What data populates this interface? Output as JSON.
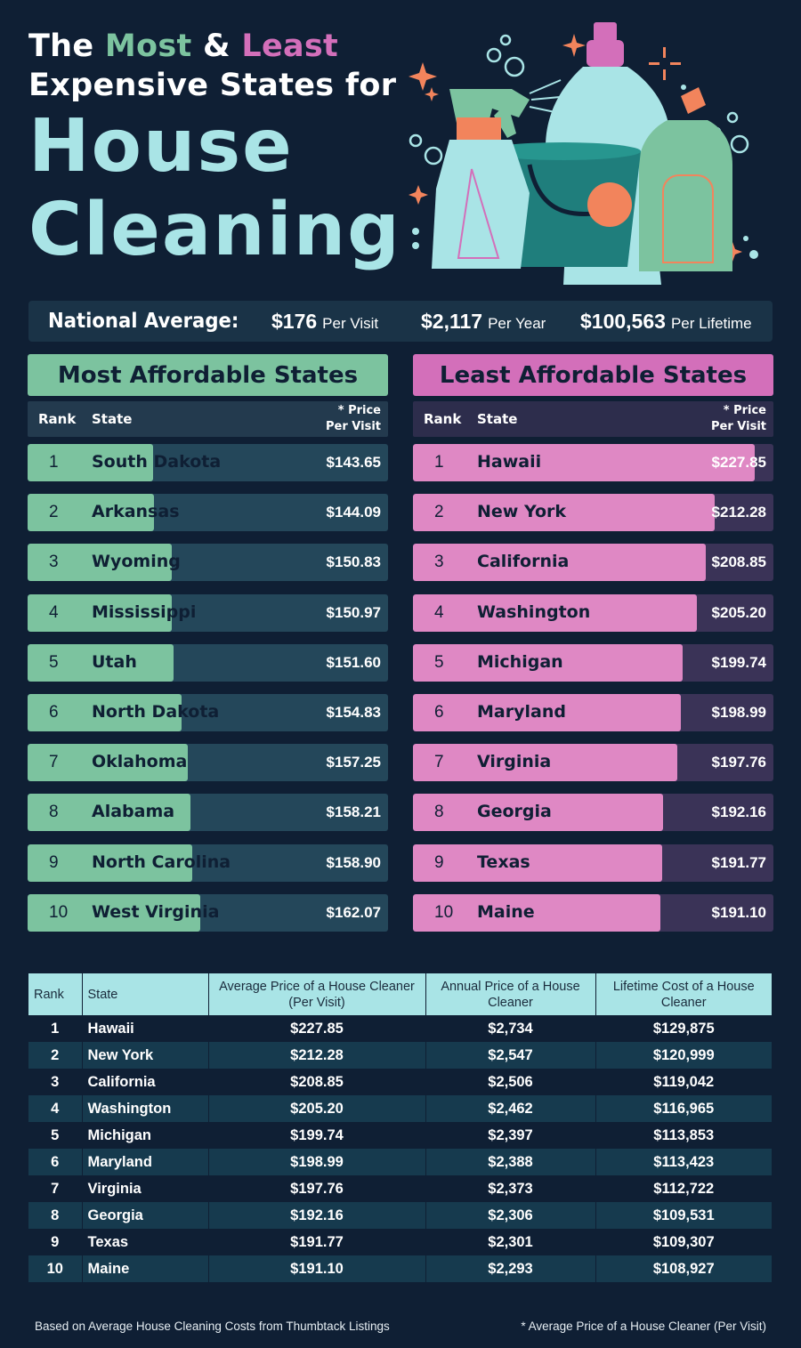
{
  "title": {
    "line1_a": "The ",
    "most": "Most",
    "amp": " & ",
    "least": "Least",
    "line2": "Expensive States for",
    "big1": "House",
    "big2": "Cleaning"
  },
  "national": {
    "label": "National Average:",
    "per_visit_value": "$176",
    "per_visit_unit": "Per Visit",
    "per_year_value": "$2,117",
    "per_year_unit": "Per Year",
    "per_lifetime_value": "$100,563",
    "per_lifetime_unit": "Per Lifetime"
  },
  "colors": {
    "background": "#0f1f34",
    "green": "#7cc39f",
    "pink": "#d36fba",
    "teal": "#a9e4e6"
  },
  "chart_data": [
    {
      "type": "bar",
      "title": "Most Affordable States",
      "col_rank": "Rank",
      "col_state": "State",
      "col_price_1": "* Price",
      "col_price_2": "Per Visit",
      "rows": [
        {
          "rank": "1",
          "state": "South Dakota",
          "price": "$143.65",
          "value": 143.65
        },
        {
          "rank": "2",
          "state": "Arkansas",
          "price": "$144.09",
          "value": 144.09
        },
        {
          "rank": "3",
          "state": "Wyoming",
          "price": "$150.83",
          "value": 150.83
        },
        {
          "rank": "4",
          "state": "Mississippi",
          "price": "$150.97",
          "value": 150.97
        },
        {
          "rank": "5",
          "state": "Utah",
          "price": "$151.60",
          "value": 151.6
        },
        {
          "rank": "6",
          "state": "North Dakota",
          "price": "$154.83",
          "value": 154.83
        },
        {
          "rank": "7",
          "state": "Oklahoma",
          "price": "$157.25",
          "value": 157.25
        },
        {
          "rank": "8",
          "state": "Alabama",
          "price": "$158.21",
          "value": 158.21
        },
        {
          "rank": "9",
          "state": "North Carolina",
          "price": "$158.90",
          "value": 158.9
        },
        {
          "rank": "10",
          "state": "West Virginia",
          "price": "$162.07",
          "value": 162.07
        }
      ],
      "scale": {
        "min": 95,
        "max": 235
      }
    },
    {
      "type": "bar",
      "title": "Least Affordable States",
      "col_rank": "Rank",
      "col_state": "State",
      "col_price_1": "* Price",
      "col_price_2": "Per Visit",
      "rows": [
        {
          "rank": "1",
          "state": "Hawaii",
          "price": "$227.85",
          "value": 227.85
        },
        {
          "rank": "2",
          "state": "New York",
          "price": "$212.28",
          "value": 212.28
        },
        {
          "rank": "3",
          "state": "California",
          "price": "$208.85",
          "value": 208.85
        },
        {
          "rank": "4",
          "state": "Washington",
          "price": "$205.20",
          "value": 205.2
        },
        {
          "rank": "5",
          "state": "Michigan",
          "price": "$199.74",
          "value": 199.74
        },
        {
          "rank": "6",
          "state": "Maryland",
          "price": "$198.99",
          "value": 198.99
        },
        {
          "rank": "7",
          "state": "Virginia",
          "price": "$197.76",
          "value": 197.76
        },
        {
          "rank": "8",
          "state": "Georgia",
          "price": "$192.16",
          "value": 192.16
        },
        {
          "rank": "9",
          "state": "Texas",
          "price": "$191.77",
          "value": 191.77
        },
        {
          "rank": "10",
          "state": "Maine",
          "price": "$191.10",
          "value": 191.1
        }
      ],
      "scale": {
        "min": 95,
        "max": 235
      }
    },
    {
      "type": "table",
      "headers": [
        "Rank",
        "State",
        "Average Price of a House Cleaner (Per Visit)",
        "Annual Price of a House Cleaner",
        "Lifetime Cost of a House Cleaner"
      ],
      "rows": [
        [
          "1",
          "Hawaii",
          "$227.85",
          "$2,734",
          "$129,875"
        ],
        [
          "2",
          "New York",
          "$212.28",
          "$2,547",
          "$120,999"
        ],
        [
          "3",
          "California",
          "$208.85",
          "$2,506",
          "$119,042"
        ],
        [
          "4",
          "Washington",
          "$205.20",
          "$2,462",
          "$116,965"
        ],
        [
          "5",
          "Michigan",
          "$199.74",
          "$2,397",
          "$113,853"
        ],
        [
          "6",
          "Maryland",
          "$198.99",
          "$2,388",
          "$113,423"
        ],
        [
          "7",
          "Virginia",
          "$197.76",
          "$2,373",
          "$112,722"
        ],
        [
          "8",
          "Georgia",
          "$192.16",
          "$2,306",
          "$109,531"
        ],
        [
          "9",
          "Texas",
          "$191.77",
          "$2,301",
          "$109,307"
        ],
        [
          "10",
          "Maine",
          "$191.10",
          "$2,293",
          "$108,927"
        ]
      ]
    }
  ],
  "footer": {
    "left": "Based on Average House Cleaning Costs from Thumbtack Listings",
    "right": "* Average Price of a House Cleaner (Per Visit)"
  }
}
